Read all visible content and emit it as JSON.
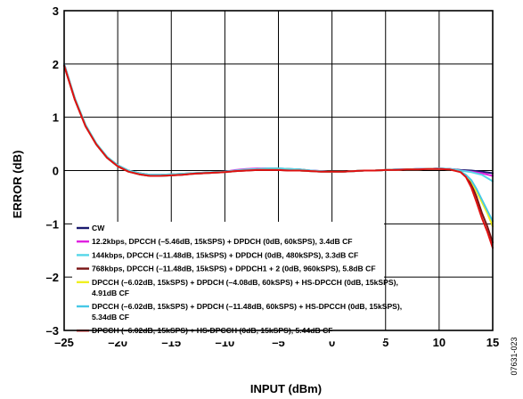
{
  "figure_id": "07631-023",
  "chart_data": {
    "type": "line",
    "xlabel": "INPUT (dBm)",
    "ylabel": "ERROR (dB)",
    "xlim": [
      -25,
      15
    ],
    "ylim": [
      -3,
      3
    ],
    "xticks": [
      "–25",
      "–20",
      "–15",
      "–10",
      "–5",
      "0",
      "5",
      "10",
      "15"
    ],
    "yticks": [
      "3",
      "2",
      "1",
      "0",
      "–1",
      "–2",
      "–3"
    ],
    "grid": true,
    "legend_position": "bottom-left",
    "series": [
      {
        "name": "CW",
        "color": "#1a1a6e",
        "x": [
          -25,
          -24,
          -23,
          -22,
          -21,
          -20,
          -19,
          -18,
          -17,
          -16,
          -15,
          -14,
          -13,
          -12,
          -11,
          -10,
          -9,
          -8,
          -7,
          -6,
          -5,
          -4,
          -3,
          -2,
          -1,
          0,
          1,
          2,
          3,
          4,
          5,
          6,
          7,
          8,
          9,
          10,
          11,
          12,
          13,
          14,
          15
        ],
        "y": [
          2.0,
          1.35,
          0.85,
          0.5,
          0.25,
          0.1,
          0.0,
          -0.05,
          -0.08,
          -0.08,
          -0.07,
          -0.06,
          -0.05,
          -0.04,
          -0.03,
          -0.02,
          0.0,
          0.02,
          0.03,
          0.04,
          0.04,
          0.03,
          0.02,
          0.0,
          -0.01,
          -0.02,
          -0.02,
          -0.01,
          0.0,
          0.0,
          0.01,
          0.02,
          0.02,
          0.03,
          0.03,
          0.04,
          0.03,
          0.01,
          0.0,
          -0.02,
          -0.05
        ]
      },
      {
        "name": "12.2kbps, DPCCH (–5.46dB, 15kSPS) + DPDCH (0dB, 60kSPS), 3.4dB CF",
        "color": "#e020e0",
        "x": [
          -25,
          -24,
          -23,
          -22,
          -21,
          -20,
          -19,
          -18,
          -17,
          -16,
          -15,
          -14,
          -13,
          -12,
          -11,
          -10,
          -9,
          -8,
          -7,
          -6,
          -5,
          -4,
          -3,
          -2,
          -1,
          0,
          1,
          2,
          3,
          4,
          5,
          6,
          7,
          8,
          9,
          10,
          11,
          12,
          13,
          14,
          15
        ],
        "y": [
          2.0,
          1.35,
          0.85,
          0.5,
          0.25,
          0.09,
          -0.01,
          -0.06,
          -0.09,
          -0.09,
          -0.08,
          -0.07,
          -0.06,
          -0.05,
          -0.04,
          -0.02,
          0.01,
          0.03,
          0.04,
          0.04,
          0.03,
          0.02,
          0.01,
          0.0,
          -0.01,
          -0.02,
          -0.02,
          -0.01,
          0.0,
          0.0,
          0.01,
          0.02,
          0.02,
          0.03,
          0.03,
          0.04,
          0.03,
          0.0,
          -0.02,
          -0.05,
          -0.1
        ]
      },
      {
        "name": "144kbps, DPCCH (–11.48dB, 15kSPS) + DPDCH (0dB, 480kSPS), 3.3dB CF",
        "color": "#55d6e8",
        "x": [
          -25,
          -24,
          -23,
          -22,
          -21,
          -20,
          -19,
          -18,
          -17,
          -16,
          -15,
          -14,
          -13,
          -12,
          -11,
          -10,
          -9,
          -8,
          -7,
          -6,
          -5,
          -4,
          -3,
          -2,
          -1,
          0,
          1,
          2,
          3,
          4,
          5,
          6,
          7,
          8,
          9,
          10,
          11,
          12,
          13,
          14,
          15
        ],
        "y": [
          2.0,
          1.36,
          0.86,
          0.51,
          0.26,
          0.1,
          0.0,
          -0.05,
          -0.08,
          -0.08,
          -0.07,
          -0.06,
          -0.05,
          -0.04,
          -0.03,
          -0.02,
          0.0,
          0.02,
          0.03,
          0.04,
          0.04,
          0.03,
          0.02,
          0.0,
          -0.01,
          -0.02,
          -0.02,
          -0.01,
          0.0,
          0.0,
          0.01,
          0.02,
          0.02,
          0.03,
          0.03,
          0.04,
          0.03,
          0.0,
          -0.03,
          -0.08,
          -0.2
        ]
      },
      {
        "name": "768kbps, DPCCH (–11.48dB, 15kSPS) + DPDCH1 + 2 (0dB, 960kSPS), 5.8dB CF",
        "color": "#7a1414",
        "x": [
          -25,
          -24,
          -23,
          -22,
          -21,
          -20,
          -19,
          -18,
          -17,
          -16,
          -15,
          -14,
          -13,
          -12,
          -11,
          -10,
          -9,
          -8,
          -7,
          -6,
          -5,
          -4,
          -3,
          -2,
          -1,
          0,
          1,
          2,
          3,
          4,
          5,
          6,
          7,
          8,
          9,
          10,
          11,
          12,
          12.5,
          13,
          13.5,
          14,
          14.5,
          15
        ],
        "y": [
          1.97,
          1.33,
          0.83,
          0.49,
          0.24,
          0.08,
          -0.02,
          -0.07,
          -0.1,
          -0.1,
          -0.09,
          -0.08,
          -0.06,
          -0.05,
          -0.04,
          -0.03,
          -0.01,
          0.0,
          0.01,
          0.01,
          0.01,
          0.0,
          0.0,
          -0.01,
          -0.02,
          -0.02,
          -0.02,
          -0.01,
          0.0,
          0.0,
          0.01,
          0.01,
          0.02,
          0.02,
          0.03,
          0.03,
          0.02,
          -0.02,
          -0.1,
          -0.25,
          -0.5,
          -0.8,
          -1.05,
          -1.35
        ]
      },
      {
        "name": "DPCCH (–6.02dB, 15kSPS) + DPDCH (–4.08dB, 60kSPS) + HS-DPCCH (0dB, 15kSPS), 4.91dB CF",
        "color": "#f0f020",
        "x": [
          -25,
          -24,
          -23,
          -22,
          -21,
          -20,
          -19,
          -18,
          -17,
          -16,
          -15,
          -14,
          -13,
          -12,
          -11,
          -10,
          -9,
          -8,
          -7,
          -6,
          -5,
          -4,
          -3,
          -2,
          -1,
          0,
          1,
          2,
          3,
          4,
          5,
          6,
          7,
          8,
          9,
          10,
          11,
          12,
          12.5,
          13,
          13.5,
          14,
          14.5,
          15
        ],
        "y": [
          1.98,
          1.34,
          0.84,
          0.49,
          0.24,
          0.08,
          -0.02,
          -0.07,
          -0.1,
          -0.1,
          -0.09,
          -0.07,
          -0.06,
          -0.05,
          -0.04,
          -0.03,
          -0.01,
          0.01,
          0.02,
          0.02,
          0.02,
          0.01,
          0.0,
          -0.01,
          -0.02,
          -0.02,
          -0.02,
          -0.01,
          0.0,
          0.0,
          0.01,
          0.01,
          0.02,
          0.02,
          0.03,
          0.03,
          0.02,
          -0.02,
          -0.08,
          -0.2,
          -0.4,
          -0.6,
          -0.8,
          -1.05
        ]
      },
      {
        "name": "DPCCH (–6.02dB, 15kSPS) + DPDCH (–11.48dB, 60kSPS) + HS-DPCCH (0dB, 15kSPS), 5.34dB CF",
        "color": "#46c8e6",
        "x": [
          -25,
          -24,
          -23,
          -22,
          -21,
          -20,
          -19,
          -18,
          -17,
          -16,
          -15,
          -14,
          -13,
          -12,
          -11,
          -10,
          -9,
          -8,
          -7,
          -6,
          -5,
          -4,
          -3,
          -2,
          -1,
          0,
          1,
          2,
          3,
          4,
          5,
          6,
          7,
          8,
          9,
          10,
          11,
          12,
          12.5,
          13,
          13.5,
          14,
          14.5,
          15
        ],
        "y": [
          1.98,
          1.34,
          0.84,
          0.49,
          0.24,
          0.08,
          -0.02,
          -0.07,
          -0.1,
          -0.1,
          -0.09,
          -0.07,
          -0.06,
          -0.05,
          -0.04,
          -0.03,
          -0.01,
          0.01,
          0.02,
          0.02,
          0.02,
          0.01,
          0.0,
          -0.01,
          -0.02,
          -0.02,
          -0.02,
          -0.01,
          0.0,
          0.0,
          0.01,
          0.01,
          0.02,
          0.02,
          0.03,
          0.03,
          0.02,
          -0.02,
          -0.08,
          -0.18,
          -0.35,
          -0.55,
          -0.75,
          -0.95
        ]
      },
      {
        "name": "DPCCH (–6.02dB, 15kSPS) + HS-DPCCH (0dB, 15kSPS), 5.44dB CF",
        "color": "#e01010",
        "x": [
          -25,
          -24,
          -23,
          -22,
          -21,
          -20,
          -19,
          -18,
          -17,
          -16,
          -15,
          -14,
          -13,
          -12,
          -11,
          -10,
          -9,
          -8,
          -7,
          -6,
          -5,
          -4,
          -3,
          -2,
          -1,
          0,
          1,
          2,
          3,
          4,
          5,
          6,
          7,
          8,
          9,
          10,
          11,
          12,
          12.5,
          13,
          13.5,
          14,
          14.5,
          15
        ],
        "y": [
          1.97,
          1.33,
          0.83,
          0.49,
          0.24,
          0.08,
          -0.02,
          -0.07,
          -0.1,
          -0.1,
          -0.09,
          -0.08,
          -0.06,
          -0.05,
          -0.04,
          -0.03,
          -0.01,
          0.0,
          0.01,
          0.01,
          0.01,
          0.0,
          0.0,
          -0.01,
          -0.02,
          -0.02,
          -0.02,
          -0.01,
          0.0,
          0.0,
          0.01,
          0.01,
          0.02,
          0.02,
          0.03,
          0.03,
          0.02,
          -0.03,
          -0.12,
          -0.32,
          -0.6,
          -0.9,
          -1.15,
          -1.45
        ]
      }
    ]
  }
}
